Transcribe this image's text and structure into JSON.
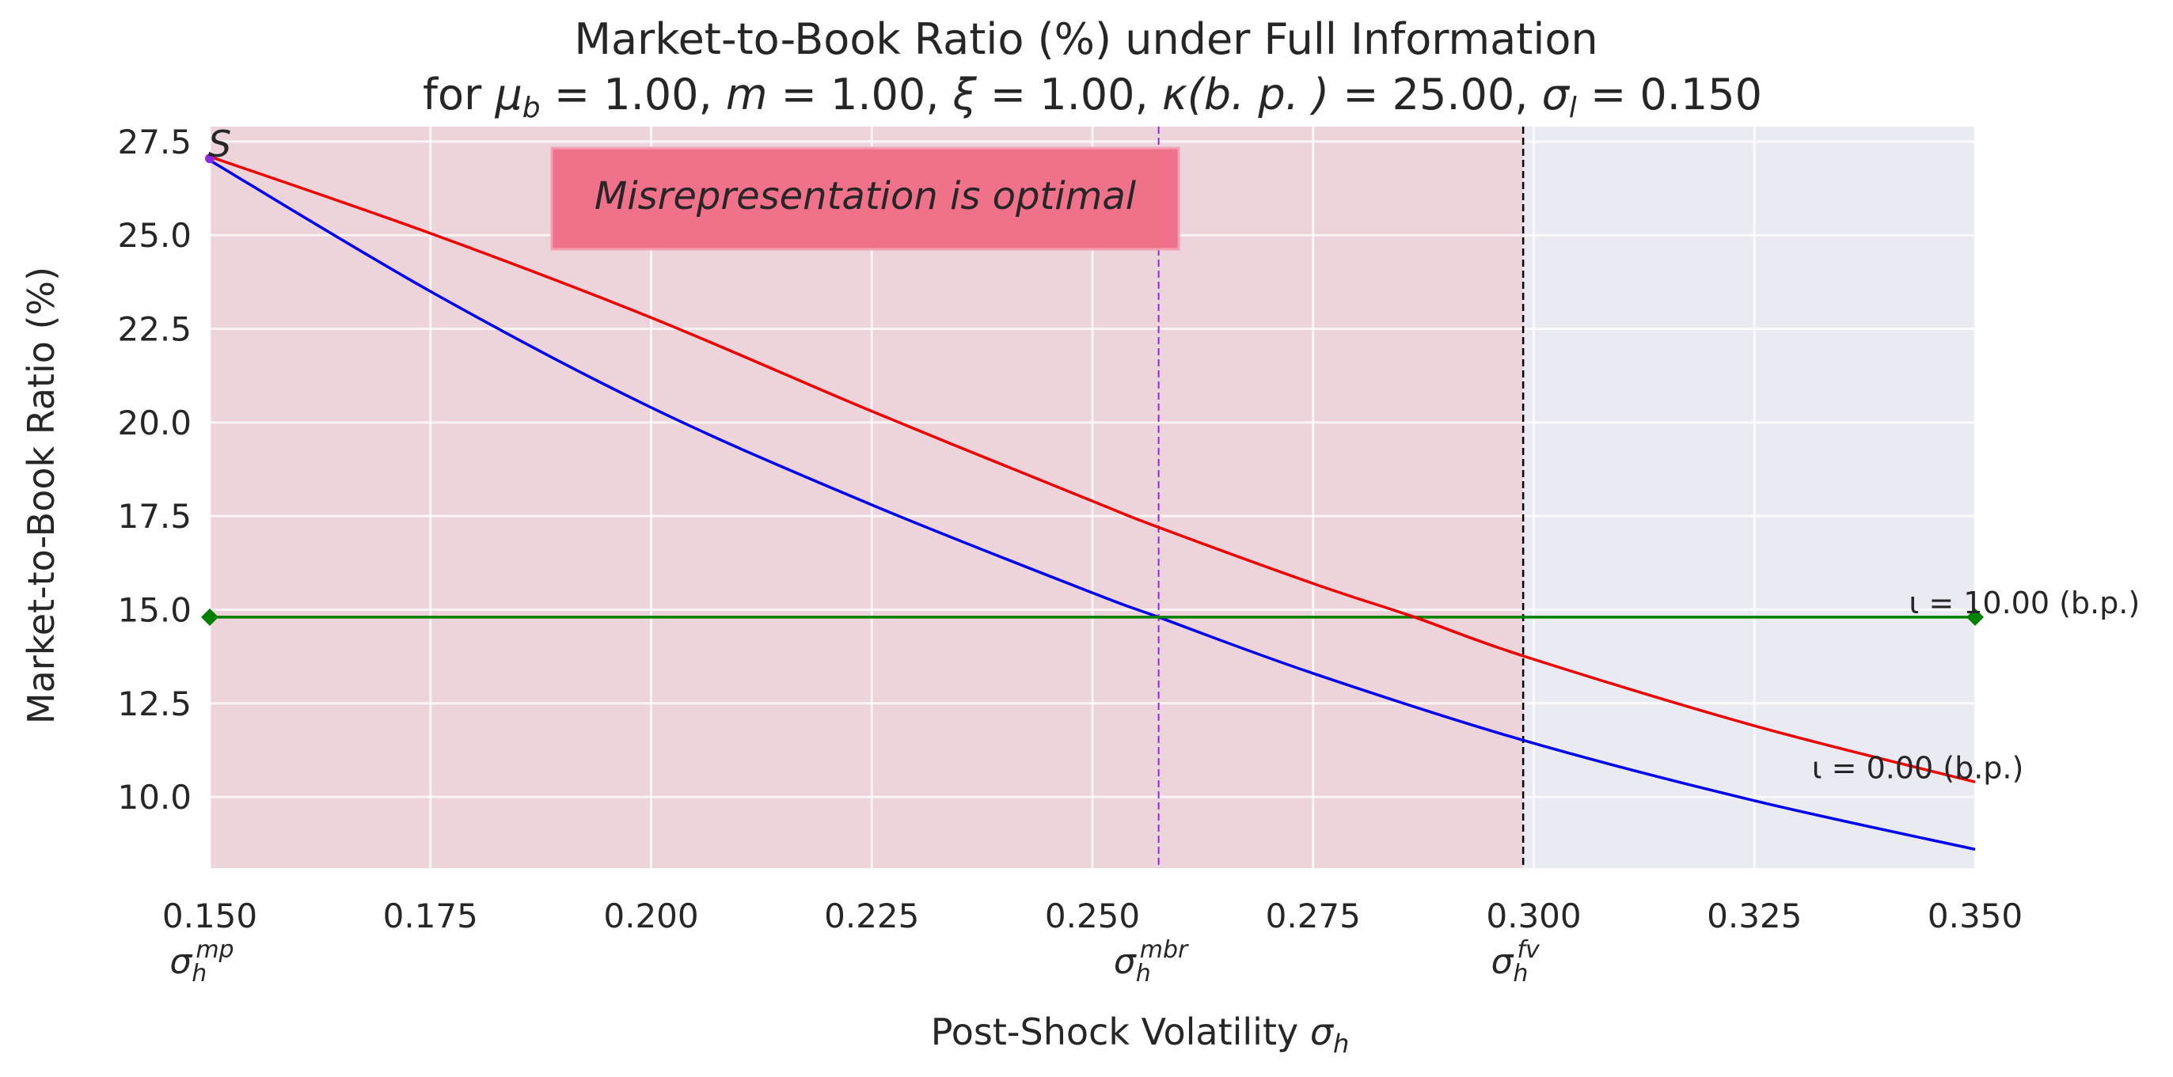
{
  "chart_data": {
    "type": "line",
    "title": "Market-to-Book Ratio (%) under Full Information",
    "subtitle": {
      "prefix": "for ",
      "params": [
        {
          "sym": "μ",
          "sub": "b",
          "val": "1.00"
        },
        {
          "sym": "m",
          "sub": "",
          "val": "1.00"
        },
        {
          "sym": "ξ",
          "sub": "",
          "val": "1.00"
        },
        {
          "sym": "κ",
          "sub": "",
          "paren": "(b. p. )",
          "val": "25.00"
        },
        {
          "sym": "σ",
          "sub": "l",
          "val": "0.150"
        }
      ]
    },
    "xlabel_text": "Post-Shock Volatility ",
    "xlabel_sym": "σ",
    "xlabel_sub": "h",
    "ylabel": "Market-to-Book Ratio (%)",
    "xlim": [
      0.15,
      0.35
    ],
    "ylim": [
      8.1,
      27.9
    ],
    "x_ticks": [
      0.15,
      0.175,
      0.2,
      0.225,
      0.25,
      0.275,
      0.3,
      0.325,
      0.35
    ],
    "x_tick_labels": [
      "0.150",
      "0.175",
      "0.200",
      "0.225",
      "0.250",
      "0.275",
      "0.300",
      "0.325",
      "0.350"
    ],
    "y_ticks": [
      10.0,
      12.5,
      15.0,
      17.5,
      20.0,
      22.5,
      25.0,
      27.5
    ],
    "y_tick_labels": [
      "10.0",
      "12.5",
      "15.0",
      "17.5",
      "20.0",
      "22.5",
      "25.0",
      "27.5"
    ],
    "grid": true,
    "series": [
      {
        "label": "ι = 0.00 (b.p.)",
        "color": "#0000ee",
        "x": [
          0.15,
          0.175,
          0.2,
          0.225,
          0.25,
          0.2575,
          0.275,
          0.299,
          0.325,
          0.35
        ],
        "y": [
          27.0,
          23.5,
          20.4,
          17.8,
          15.45,
          14.8,
          13.3,
          11.5,
          9.9,
          8.6
        ]
      },
      {
        "label": "ι = 10.00 (b.p.)",
        "color": "#008000",
        "x": [
          0.15,
          0.35
        ],
        "y": [
          14.8,
          14.8
        ]
      },
      {
        "label": "",
        "color": "#ee0000",
        "x": [
          0.15,
          0.175,
          0.2,
          0.225,
          0.25,
          0.2575,
          0.275,
          0.2865,
          0.299,
          0.325,
          0.35
        ],
        "y": [
          27.1,
          25.05,
          22.8,
          20.3,
          17.9,
          17.2,
          15.7,
          14.8,
          13.75,
          11.9,
          10.4
        ]
      }
    ],
    "reference_lines": [
      {
        "x": 0.2575,
        "color": "#8a2be2",
        "style": "dashed",
        "label_sym": "σ",
        "label_sub": "h",
        "label_sup": "mbr"
      },
      {
        "x": 0.2988,
        "color": "#000000",
        "style": "dashed",
        "label_sym": "σ",
        "label_sub": "h",
        "label_sup": "fv"
      }
    ],
    "edge_label": {
      "label_sym": "σ",
      "label_sub": "h",
      "label_sup": "mp",
      "x": 0.15
    },
    "regions": [
      {
        "from": 0.15,
        "to": 0.2988,
        "color": "#ecd4da"
      },
      {
        "from": 0.2988,
        "to": 0.35,
        "color": "#eaeaf2"
      }
    ],
    "corner_label": "S",
    "annotation": {
      "text": "Misrepresentation is optimal",
      "bg": "#f0728a"
    },
    "colors": {
      "plot_bg": "#eaeaf2",
      "grid": "#ffffff"
    }
  }
}
